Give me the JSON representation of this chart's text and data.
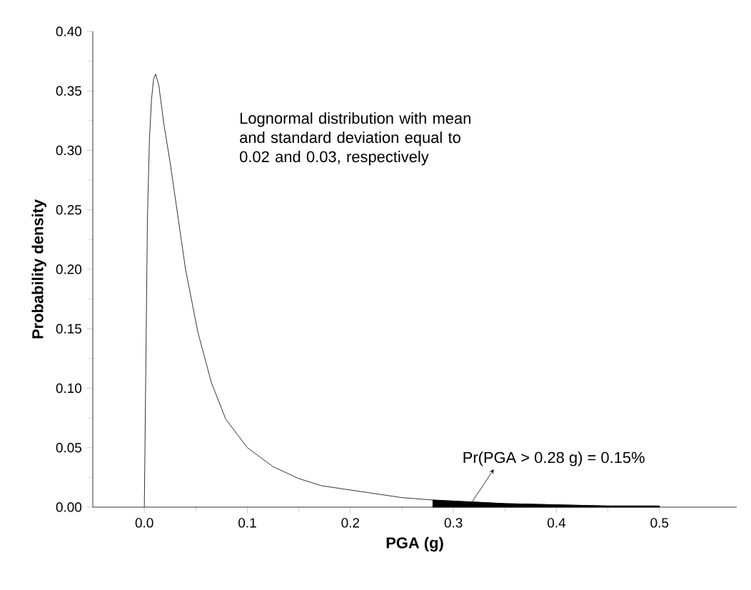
{
  "chart_data": {
    "type": "line",
    "xlabel": "PGA (g)",
    "ylabel": "Probability density",
    "xlim": [
      -0.05,
      0.575
    ],
    "ylim": [
      0,
      0.4
    ],
    "xticks": [
      {
        "value": 0,
        "label": "0.0"
      },
      0.1,
      0.2,
      0.3,
      0.4,
      0.5
    ],
    "yticks": [
      {
        "value": 0,
        "label": "0.00"
      },
      0.05,
      {
        "value": 0.1,
        "label": "0.10"
      },
      0.15,
      {
        "value": 0.2,
        "label": "0.20"
      },
      0.25,
      {
        "value": 0.3,
        "label": "0.30"
      },
      0.35,
      {
        "value": 0.4,
        "label": "0.40"
      }
    ],
    "series": [
      {
        "color": "#000000",
        "x": [
          0,
          0.0015,
          0.003,
          0.005,
          0.007,
          0.009,
          0.011,
          0.014,
          0.019,
          0.025,
          0.033,
          0.04,
          0.052,
          0.065,
          0.079,
          0.1,
          0.125,
          0.15,
          0.172,
          0.219,
          0.25,
          0.28,
          0.35,
          0.4,
          0.45,
          0.5
        ],
        "values": [
          0,
          0.12,
          0.243,
          0.31,
          0.343,
          0.36,
          0.364,
          0.355,
          0.322,
          0.29,
          0.242,
          0.2,
          0.147,
          0.105,
          0.074,
          0.05,
          0.034,
          0.024,
          0.018,
          0.012,
          0.008,
          0.006,
          0.003,
          0.002,
          0.001,
          0.001
        ]
      },
      {
        "type": "area",
        "color": "#000000",
        "x": [
          0.28,
          0.35,
          0.4,
          0.45,
          0.5
        ],
        "values": [
          0.006,
          0.003,
          0.002,
          0.001,
          0.001
        ]
      }
    ],
    "annotations": [
      "Lognormal distribution with mean and standard deviation equal to 0.02 and 0.03, respectively",
      {
        "text": "Pr(PGA > 0.28 g) = 0.15%",
        "x": 0.317,
        "y": 0.003
      }
    ],
    "grid": false,
    "marker": "none",
    "line_style": "solid"
  }
}
